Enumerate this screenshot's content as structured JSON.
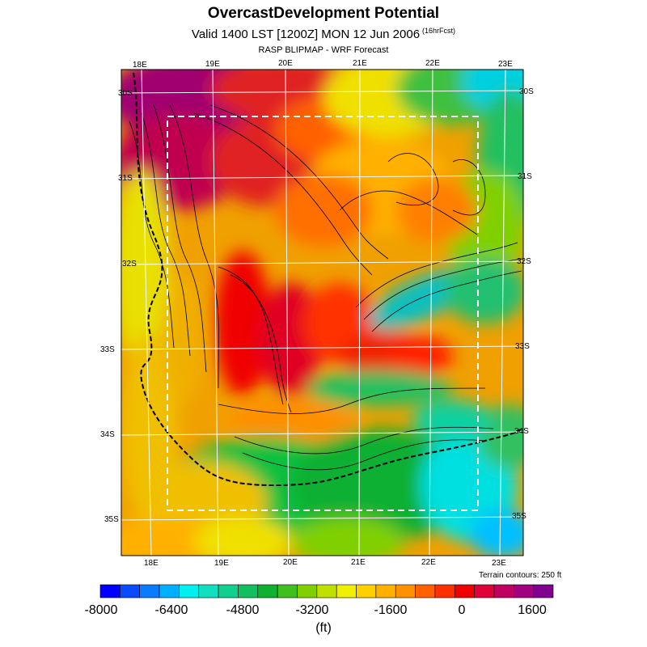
{
  "header": {
    "title": "OvercastDevelopment Potential",
    "subtitle": "Valid 1400 LST [1200Z] MON 12 Jun 2006",
    "forecast_tag": "(16hrFcst)",
    "source": "RASP BLIPMAP - WRF Forecast"
  },
  "map": {
    "top_lon_labels": [
      "18E",
      "19E",
      "20E",
      "21E",
      "22E",
      "23E"
    ],
    "bottom_lon_labels": [
      "18E",
      "19E",
      "20E",
      "21E",
      "22E",
      "23E"
    ],
    "left_lat_labels": [
      "30S",
      "31S",
      "32S",
      "33S",
      "34S",
      "35S"
    ],
    "right_lat_labels": [
      "30S",
      "31S",
      "32S",
      "33S",
      "34S",
      "35S"
    ],
    "terrain_note": "Terrain contours: 250 ft"
  },
  "colorbar": {
    "colors": [
      "#0000ff",
      "#0a4bff",
      "#0a7bff",
      "#00b0ff",
      "#00f0f0",
      "#10e0c0",
      "#10d090",
      "#10c060",
      "#10b030",
      "#40c020",
      "#80d000",
      "#c0e000",
      "#f0f000",
      "#ffd000",
      "#ffb000",
      "#ff9000",
      "#ff6000",
      "#ff3000",
      "#f00000",
      "#e0003a",
      "#c00060",
      "#a00080",
      "#800090"
    ],
    "tick_labels": [
      "-8000",
      "-6400",
      "-4800",
      "-3200",
      "-1600",
      "0",
      "1600"
    ],
    "units": "(ft)"
  }
}
